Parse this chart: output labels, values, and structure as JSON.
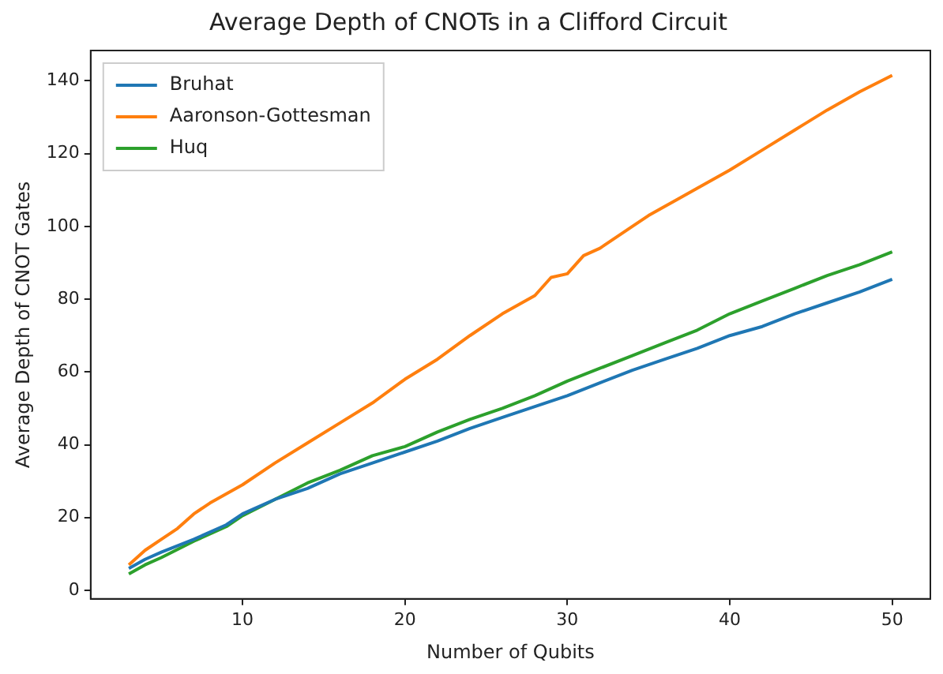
{
  "chart_data": {
    "type": "line",
    "title": "Average Depth of CNOTs in a Clifford Circuit",
    "xlabel": "Number of Qubits",
    "ylabel": "Average Depth of CNOT Gates",
    "xlim": [
      0.65,
      52.35
    ],
    "ylim": [
      -2.35,
      148.35
    ],
    "xticks": [
      10,
      20,
      30,
      40,
      50
    ],
    "yticks": [
      0,
      20,
      40,
      60,
      80,
      100,
      120,
      140
    ],
    "grid": false,
    "legend": "top left",
    "series": [
      {
        "name": "Bruhat",
        "color": "#1f77b4",
        "x": [
          3,
          4,
          5,
          7,
          9,
          10,
          12,
          14,
          16,
          18,
          20,
          22,
          24,
          26,
          28,
          30,
          32,
          34,
          36,
          38,
          40,
          42,
          44,
          46,
          48,
          50
        ],
        "values": [
          6,
          8.5,
          10.5,
          14,
          18,
          21,
          25,
          28,
          32,
          35,
          38,
          41,
          44.5,
          47.5,
          50.5,
          53.5,
          57,
          60.5,
          63.5,
          66.5,
          70,
          72.5,
          76,
          79,
          82,
          85.5
        ]
      },
      {
        "name": "Aaronson-Gottesman",
        "color": "#ff7f0e",
        "x": [
          3,
          4,
          5,
          6,
          7,
          8,
          10,
          12,
          14,
          16,
          18,
          20,
          22,
          24,
          26,
          28,
          29,
          30,
          31,
          32,
          34,
          35,
          36,
          38,
          40,
          42,
          44,
          46,
          48,
          50
        ],
        "values": [
          7,
          11,
          14,
          17,
          21,
          24,
          29,
          35,
          40.5,
          46,
          51.5,
          58,
          63.5,
          70,
          76,
          81,
          86,
          87,
          92,
          94,
          100,
          103,
          105.5,
          110.5,
          115.5,
          121,
          126.5,
          132,
          137,
          141.5
        ]
      },
      {
        "name": "Huq",
        "color": "#2ca02c",
        "x": [
          3,
          4,
          5,
          7,
          9,
          10,
          12,
          14,
          16,
          18,
          20,
          22,
          24,
          26,
          28,
          30,
          32,
          34,
          36,
          38,
          40,
          42,
          44,
          46,
          48,
          50
        ],
        "values": [
          4.5,
          7,
          9,
          13.5,
          17.5,
          20.5,
          25,
          29.5,
          33,
          37,
          39.5,
          43.5,
          47,
          50,
          53.5,
          57.5,
          61,
          64.5,
          68,
          71.5,
          76,
          79.5,
          83,
          86.5,
          89.5,
          93
        ]
      }
    ]
  }
}
